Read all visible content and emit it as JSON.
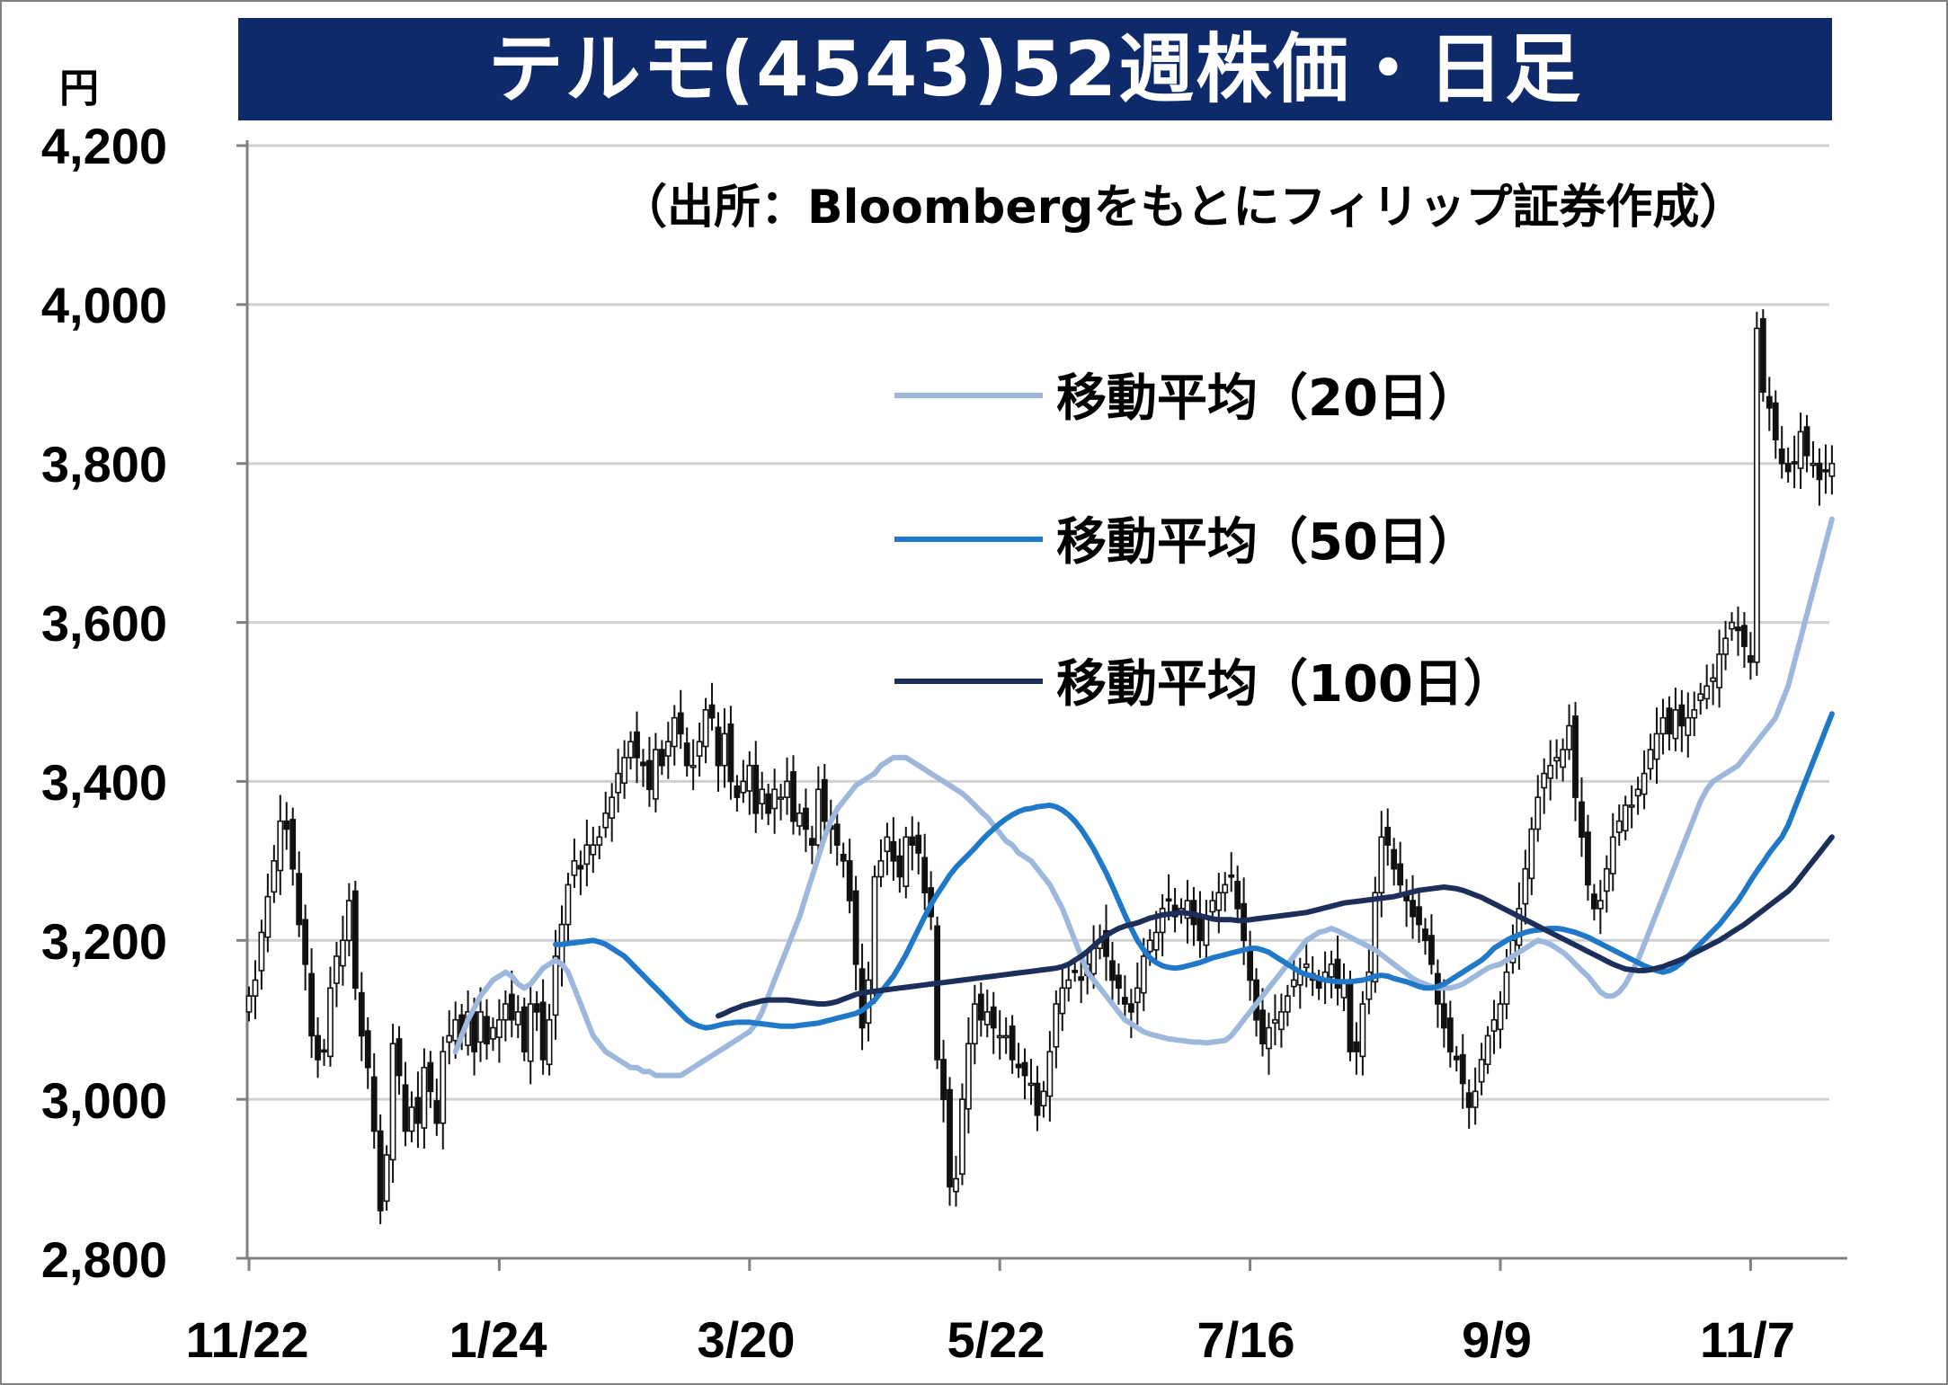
{
  "title": "テルモ(4543)52週株価・日足",
  "unit_label": "円",
  "source_note": "（出所：Bloombergをもとにフィリップ証券作成）",
  "colors": {
    "title_bg": "#0e2a6b",
    "ma20": "#9db8dc",
    "ma50": "#1f78c8",
    "ma100": "#1b2f5a",
    "grid": "#d0d0d0",
    "axis": "#808080"
  },
  "chart_data": {
    "type": "candlestick",
    "ylim": [
      2800,
      4200
    ],
    "yticks": [
      "4,200",
      "4,000",
      "3,800",
      "3,600",
      "3,400",
      "3,200",
      "3,000",
      "2,800"
    ],
    "ytick_values": [
      4200,
      4000,
      3800,
      3600,
      3400,
      3200,
      3000,
      2800
    ],
    "xticks": [
      "11/22",
      "1/24",
      "3/20",
      "5/22",
      "7/16",
      "9/9",
      "11/7"
    ],
    "xtick_index": [
      0,
      40,
      80,
      120,
      160,
      200,
      240
    ],
    "grid": true,
    "legend_position": "upper-center",
    "close": [
      3130,
      3150,
      3210,
      3255,
      3300,
      3350,
      3340,
      3290,
      3220,
      3170,
      3080,
      3050,
      3060,
      3140,
      3180,
      3200,
      3250,
      3140,
      3080,
      3040,
      2960,
      2860,
      2930,
      3070,
      3030,
      2960,
      2990,
      2970,
      3040,
      3010,
      2970,
      3060,
      3080,
      3100,
      3080,
      3110,
      3060,
      3110,
      3070,
      3090,
      3100,
      3120,
      3100,
      3110,
      3060,
      3120,
      3110,
      3050,
      3100,
      3180,
      3220,
      3270,
      3300,
      3290,
      3320,
      3320,
      3330,
      3360,
      3380,
      3410,
      3430,
      3450,
      3430,
      3420,
      3390,
      3440,
      3420,
      3450,
      3480,
      3460,
      3420,
      3420,
      3450,
      3490,
      3480,
      3420,
      3460,
      3400,
      3380,
      3400,
      3420,
      3360,
      3390,
      3360,
      3390,
      3380,
      3400,
      3350,
      3360,
      3340,
      3320,
      3390,
      3350,
      3340,
      3320,
      3300,
      3250,
      3170,
      3090,
      3150,
      3280,
      3300,
      3330,
      3300,
      3280,
      3330,
      3320,
      3310,
      3260,
      3230,
      3050,
      3000,
      2890,
      2900,
      3000,
      3070,
      3120,
      3100,
      3110,
      3090,
      3080,
      3080,
      3050,
      3040,
      3030,
      3020,
      2980,
      3010,
      3060,
      3120,
      3140,
      3150,
      3160,
      3150,
      3170,
      3190,
      3200,
      3180,
      3150,
      3140,
      3120,
      3110,
      3140,
      3180,
      3200,
      3210,
      3240,
      3250,
      3230,
      3240,
      3250,
      3220,
      3200,
      3230,
      3250,
      3260,
      3270,
      3280,
      3240,
      3200,
      3150,
      3100,
      3070,
      3090,
      3100,
      3110,
      3130,
      3150,
      3160,
      3170,
      3150,
      3140,
      3160,
      3170,
      3140,
      3150,
      3060,
      3060,
      3120,
      3160,
      3260,
      3330,
      3320,
      3290,
      3270,
      3250,
      3230,
      3220,
      3200,
      3170,
      3120,
      3090,
      3060,
      3050,
      3020,
      2990,
      3010,
      3050,
      3080,
      3100,
      3120,
      3160,
      3200,
      3240,
      3290,
      3340,
      3380,
      3410,
      3420,
      3430,
      3440,
      3470,
      3380,
      3330,
      3270,
      3240,
      3250,
      3290,
      3330,
      3350,
      3370,
      3370,
      3390,
      3410,
      3440,
      3460,
      3480,
      3460,
      3490,
      3470,
      3480,
      3490,
      3510,
      3520,
      3530,
      3560,
      3580,
      3600,
      3590,
      3570,
      3550,
      3970,
      3890,
      3870,
      3830,
      3800,
      3790,
      3800,
      3840,
      3810,
      3800,
      3780,
      3790,
      3800
    ],
    "series": [
      {
        "name": "移動平均（20日）",
        "values": [
          3060,
          3080,
          3100,
          3115,
          3130,
          3140,
          3150,
          3155,
          3160,
          3155,
          3145,
          3140,
          3145,
          3155,
          3165,
          3170,
          3175,
          3170,
          3160,
          3140,
          3120,
          3100,
          3080,
          3070,
          3060,
          3055,
          3050,
          3045,
          3040,
          3040,
          3035,
          3035,
          3030,
          3030,
          3030,
          3030,
          3030,
          3035,
          3040,
          3045,
          3050,
          3055,
          3060,
          3065,
          3070,
          3075,
          3080,
          3085,
          3095,
          3110,
          3130,
          3150,
          3170,
          3190,
          3210,
          3230,
          3255,
          3280,
          3305,
          3330,
          3350,
          3365,
          3375,
          3385,
          3395,
          3400,
          3405,
          3410,
          3420,
          3425,
          3430,
          3430,
          3430,
          3425,
          3420,
          3415,
          3410,
          3405,
          3400,
          3395,
          3390,
          3385,
          3378,
          3370,
          3362,
          3355,
          3345,
          3335,
          3325,
          3320,
          3310,
          3305,
          3300,
          3290,
          3280,
          3270,
          3255,
          3240,
          3220,
          3200,
          3180,
          3160,
          3150,
          3140,
          3130,
          3120,
          3110,
          3100,
          3095,
          3090,
          3085,
          3082,
          3080,
          3078,
          3076,
          3075,
          3074,
          3073,
          3072,
          3072,
          3071,
          3072,
          3073,
          3074,
          3080,
          3090,
          3100,
          3110,
          3120,
          3130,
          3140,
          3150,
          3160,
          3170,
          3180,
          3190,
          3200,
          3205,
          3210,
          3212,
          3215,
          3212,
          3208,
          3204,
          3200,
          3196,
          3192,
          3188,
          3182,
          3176,
          3170,
          3164,
          3158,
          3152,
          3148,
          3145,
          3142,
          3140,
          3140,
          3140,
          3142,
          3145,
          3150,
          3155,
          3160,
          3165,
          3168,
          3170,
          3175,
          3180,
          3185,
          3190,
          3195,
          3200,
          3198,
          3195,
          3190,
          3185,
          3178,
          3170,
          3162,
          3155,
          3145,
          3135,
          3130,
          3130,
          3135,
          3145,
          3160,
          3175,
          3195,
          3215,
          3235,
          3255,
          3275,
          3295,
          3315,
          3335,
          3355,
          3375,
          3390,
          3400,
          3405,
          3410,
          3415,
          3420,
          3430,
          3440,
          3450,
          3460,
          3470,
          3480,
          3500,
          3520,
          3550,
          3580,
          3610,
          3640,
          3670,
          3700,
          3730
        ]
      },
      {
        "name": "移動平均（50日）",
        "values": [
          3195,
          3195,
          3196,
          3197,
          3198,
          3199,
          3200,
          3198,
          3195,
          3190,
          3185,
          3180,
          3172,
          3164,
          3156,
          3148,
          3140,
          3132,
          3124,
          3116,
          3108,
          3100,
          3095,
          3092,
          3090,
          3091,
          3093,
          3095,
          3096,
          3097,
          3097,
          3097,
          3096,
          3095,
          3094,
          3093,
          3092,
          3092,
          3092,
          3093,
          3094,
          3095,
          3096,
          3098,
          3100,
          3102,
          3104,
          3106,
          3108,
          3112,
          3118,
          3125,
          3135,
          3145,
          3155,
          3168,
          3182,
          3198,
          3214,
          3230,
          3245,
          3258,
          3270,
          3282,
          3292,
          3300,
          3308,
          3316,
          3325,
          3333,
          3340,
          3347,
          3353,
          3358,
          3362,
          3365,
          3366,
          3368,
          3369,
          3370,
          3368,
          3364,
          3358,
          3350,
          3340,
          3328,
          3315,
          3300,
          3285,
          3268,
          3250,
          3232,
          3215,
          3200,
          3188,
          3178,
          3172,
          3168,
          3166,
          3165,
          3166,
          3168,
          3170,
          3172,
          3175,
          3178,
          3180,
          3182,
          3184,
          3186,
          3188,
          3190,
          3190,
          3188,
          3185,
          3180,
          3175,
          3170,
          3165,
          3160,
          3157,
          3155,
          3152,
          3150,
          3149,
          3148,
          3148,
          3148,
          3149,
          3150,
          3152,
          3155,
          3156,
          3155,
          3152,
          3150,
          3148,
          3145,
          3142,
          3140,
          3140,
          3142,
          3145,
          3150,
          3155,
          3160,
          3165,
          3170,
          3175,
          3182,
          3190,
          3195,
          3200,
          3204,
          3207,
          3210,
          3212,
          3213,
          3214,
          3215,
          3215,
          3214,
          3212,
          3210,
          3207,
          3204,
          3200,
          3196,
          3192,
          3188,
          3184,
          3180,
          3176,
          3172,
          3168,
          3165,
          3162,
          3160,
          3162,
          3166,
          3172,
          3180,
          3188,
          3196,
          3204,
          3212,
          3220,
          3230,
          3240,
          3250,
          3262,
          3275,
          3287,
          3298,
          3310,
          3320,
          3330,
          3345,
          3365,
          3385,
          3405,
          3425,
          3445,
          3465,
          3485
        ]
      },
      {
        "name": "移動平均（100日）",
        "values": [
          3105,
          3108,
          3112,
          3115,
          3118,
          3120,
          3122,
          3124,
          3125,
          3125,
          3125,
          3125,
          3124,
          3123,
          3122,
          3121,
          3120,
          3120,
          3121,
          3123,
          3126,
          3129,
          3132,
          3134,
          3135,
          3136,
          3137,
          3138,
          3139,
          3140,
          3141,
          3142,
          3143,
          3144,
          3145,
          3146,
          3147,
          3148,
          3149,
          3150,
          3151,
          3152,
          3153,
          3154,
          3155,
          3156,
          3157,
          3158,
          3159,
          3160,
          3161,
          3162,
          3163,
          3164,
          3165,
          3167,
          3170,
          3175,
          3180,
          3186,
          3193,
          3200,
          3206,
          3211,
          3215,
          3218,
          3220,
          3222,
          3225,
          3228,
          3230,
          3232,
          3233,
          3234,
          3235,
          3234,
          3233,
          3231,
          3229,
          3227,
          3226,
          3226,
          3226,
          3225,
          3225,
          3226,
          3227,
          3228,
          3229,
          3230,
          3231,
          3232,
          3233,
          3234,
          3235,
          3237,
          3239,
          3241,
          3243,
          3245,
          3247,
          3248,
          3249,
          3250,
          3251,
          3252,
          3253,
          3254,
          3255,
          3257,
          3259,
          3261,
          3263,
          3264,
          3265,
          3266,
          3267,
          3266,
          3265,
          3263,
          3260,
          3257,
          3254,
          3250,
          3246,
          3242,
          3238,
          3234,
          3230,
          3226,
          3222,
          3218,
          3214,
          3210,
          3206,
          3202,
          3198,
          3194,
          3190,
          3186,
          3182,
          3178,
          3174,
          3170,
          3167,
          3164,
          3163,
          3162,
          3162,
          3163,
          3165,
          3167,
          3170,
          3173,
          3176,
          3180,
          3184,
          3188,
          3192,
          3196,
          3200,
          3205,
          3210,
          3215,
          3220,
          3226,
          3232,
          3238,
          3244,
          3250,
          3256,
          3262,
          3270,
          3280,
          3290,
          3300,
          3310,
          3320,
          3330
        ]
      }
    ]
  },
  "legend": [
    {
      "label": "移動平均（20日）"
    },
    {
      "label": "移動平均（50日）"
    },
    {
      "label": "移動平均（100日）"
    }
  ]
}
